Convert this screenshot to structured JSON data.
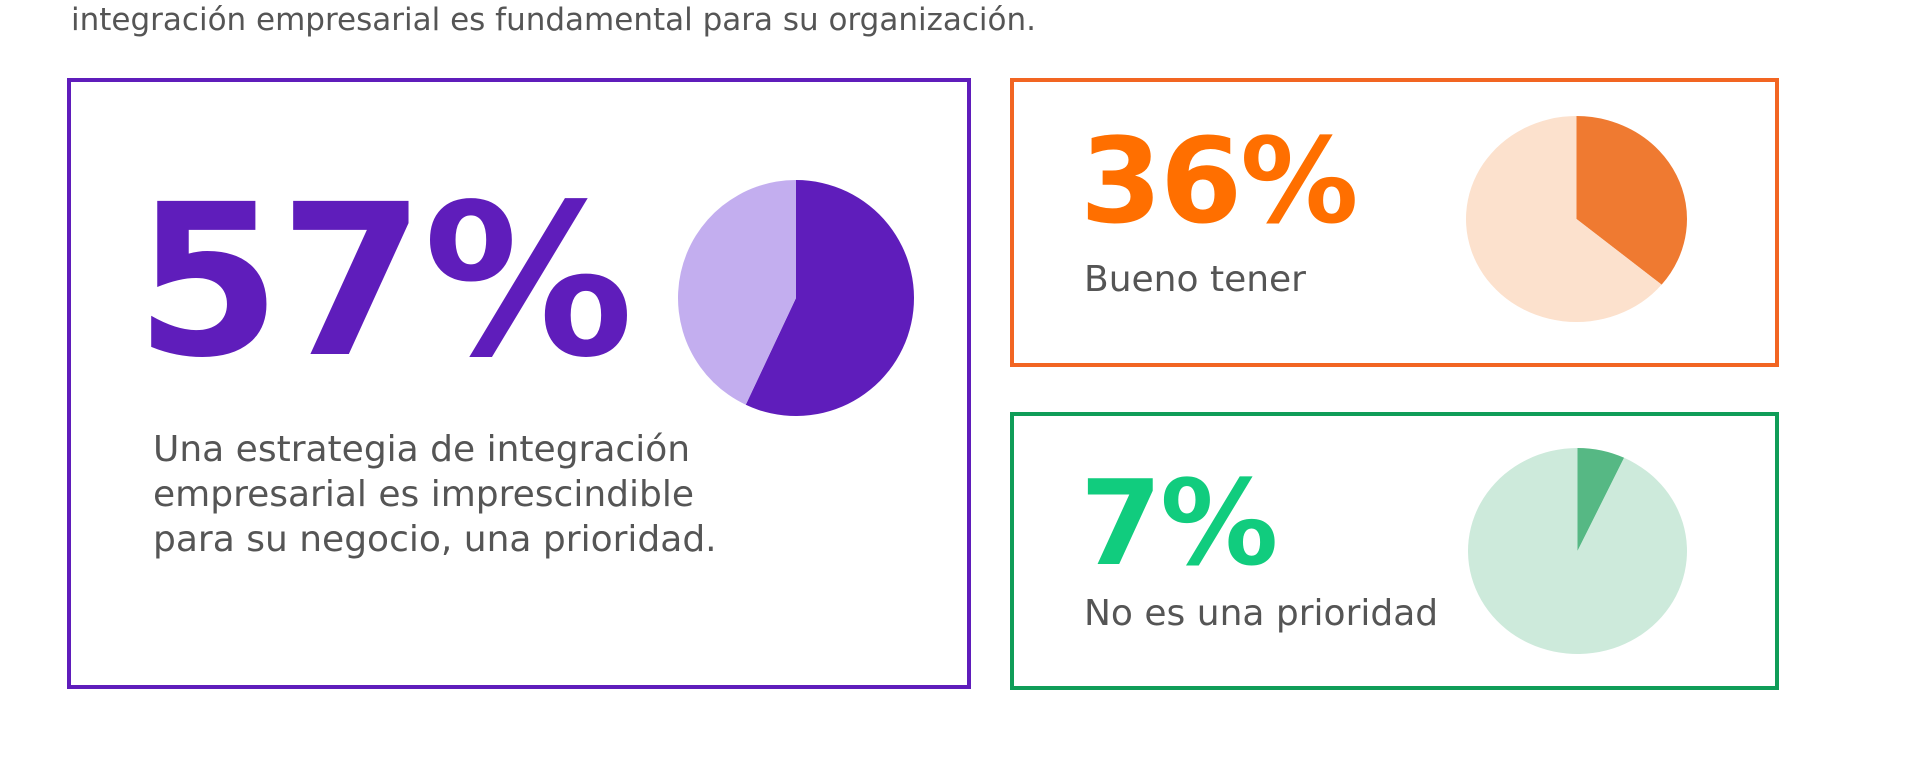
{
  "intro_text": "integración empresarial es fundamental para su organización.",
  "chart_data": [
    {
      "type": "pie",
      "value_label": "57%",
      "caption": "Una estrategia de integración empresarial es imprescindible para su negocio, una prioridad.",
      "slices": [
        {
          "label": "Una estrategia de integración empresarial es imprescindible para su negocio, una prioridad.",
          "value": 57,
          "color": "#5f1dbb"
        },
        {
          "label": "",
          "value": 43,
          "color": "#c3aeef"
        }
      ],
      "accent_color": "#5f1dbb"
    },
    {
      "type": "pie",
      "value_label": "36%",
      "caption": "Bueno tener",
      "slices": [
        {
          "label": "Bueno tener",
          "value": 36,
          "color": "#ef7a31"
        },
        {
          "label": "",
          "value": 64,
          "color": "#fce1cd"
        }
      ],
      "accent_color": "#ff6f00"
    },
    {
      "type": "pie",
      "value_label": "7%",
      "caption": "No es una prioridad",
      "slices": [
        {
          "label": "No es una prioridad",
          "value": 7,
          "color": "#56b884"
        },
        {
          "label": "",
          "value": 93,
          "color": "#cdeadb"
        }
      ],
      "accent_color": "#11cc7e"
    }
  ]
}
